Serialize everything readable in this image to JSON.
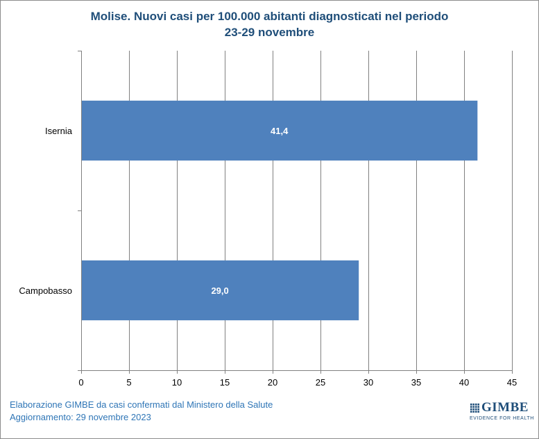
{
  "chart_data": {
    "type": "bar",
    "orientation": "horizontal",
    "title_line1": "Molise. Nuovi casi per 100.000 abitanti diagnosticati nel periodo",
    "title_line2": "23-29 novembre",
    "categories": [
      "Isernia",
      "Campobasso"
    ],
    "values": [
      41.4,
      29.0
    ],
    "data_labels": [
      "41,4",
      "29,0"
    ],
    "xlim": [
      0,
      45
    ],
    "x_ticks": [
      0,
      5,
      10,
      15,
      20,
      25,
      30,
      35,
      40,
      45
    ],
    "x_tick_labels": [
      "0",
      "5",
      "10",
      "15",
      "20",
      "25",
      "30",
      "35",
      "40",
      "45"
    ],
    "grid": "vertical",
    "bar_color": "#4f81bd",
    "label_color": "#ffffff"
  },
  "footer": {
    "line1": "Elaborazione GIMBE da casi confermati dal Ministero della Salute",
    "line2": "Aggiornamento: 29 novembre 2023"
  },
  "logo": {
    "name": "GIMBE",
    "tagline": "EVIDENCE FOR HEALTH"
  }
}
